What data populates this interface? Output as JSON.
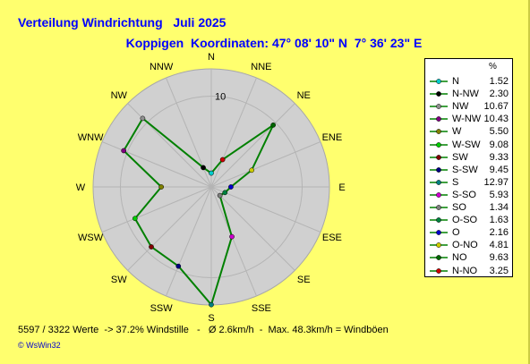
{
  "title": "Verteilung Windrichtung   Juli 2025",
  "subtitle": "Koppigen  Koordinaten: 47° 08' 10\" N  7° 36' 23\" E",
  "footer": "5597 / 3322 Werte  -> 37.2% Windstille   -   Ø 2.6km/h  -  Max. 48.3km/h = Windböen",
  "copyright": "© WsWin32",
  "legend_header": "%",
  "colors": {
    "background": "#ffff6e",
    "disk": "#d0d0d0",
    "grid": "#b4b4b4",
    "line": "#008000"
  },
  "chart_data": {
    "type": "radar",
    "ring_label": "10",
    "ring_step": 10,
    "r_max": 13,
    "directions": [
      "N",
      "NNE",
      "NE",
      "ENE",
      "E",
      "ESE",
      "SE",
      "SSE",
      "S",
      "SSW",
      "SW",
      "WSW",
      "W",
      "WNW",
      "NW",
      "NNW"
    ],
    "series": [
      {
        "values": [
          {
            "dir": "N",
            "legend": "N",
            "value": 1.52,
            "color": "#00cccc"
          },
          {
            "dir": "NNW",
            "legend": "N-NW",
            "value": 2.3,
            "color": "#000000"
          },
          {
            "dir": "NW",
            "legend": "NW",
            "value": 10.67,
            "color": "#909090"
          },
          {
            "dir": "WNW",
            "legend": "W-NW",
            "value": 10.43,
            "color": "#800080"
          },
          {
            "dir": "W",
            "legend": "W",
            "value": 5.5,
            "color": "#808000"
          },
          {
            "dir": "WSW",
            "legend": "W-SW",
            "value": 9.08,
            "color": "#00cc00"
          },
          {
            "dir": "SW",
            "legend": "SW",
            "value": 9.33,
            "color": "#800000"
          },
          {
            "dir": "SSW",
            "legend": "S-SW",
            "value": 9.45,
            "color": "#000080"
          },
          {
            "dir": "S",
            "legend": "S",
            "value": 12.97,
            "color": "#008080"
          },
          {
            "dir": "SSE",
            "legend": "S-SO",
            "value": 5.93,
            "color": "#cc00cc"
          },
          {
            "dir": "SE",
            "legend": "SO",
            "value": 1.34,
            "color": "#808080"
          },
          {
            "dir": "ESE",
            "legend": "O-SO",
            "value": 1.63,
            "color": "#008040"
          },
          {
            "dir": "E",
            "legend": "O",
            "value": 2.16,
            "color": "#0000cc"
          },
          {
            "dir": "ENE",
            "legend": "O-NO",
            "value": 4.81,
            "color": "#cccc00"
          },
          {
            "dir": "NE",
            "legend": "NO",
            "value": 9.63,
            "color": "#006400"
          },
          {
            "dir": "NNE",
            "legend": "N-NO",
            "value": 3.25,
            "color": "#cc0000"
          }
        ]
      }
    ]
  }
}
